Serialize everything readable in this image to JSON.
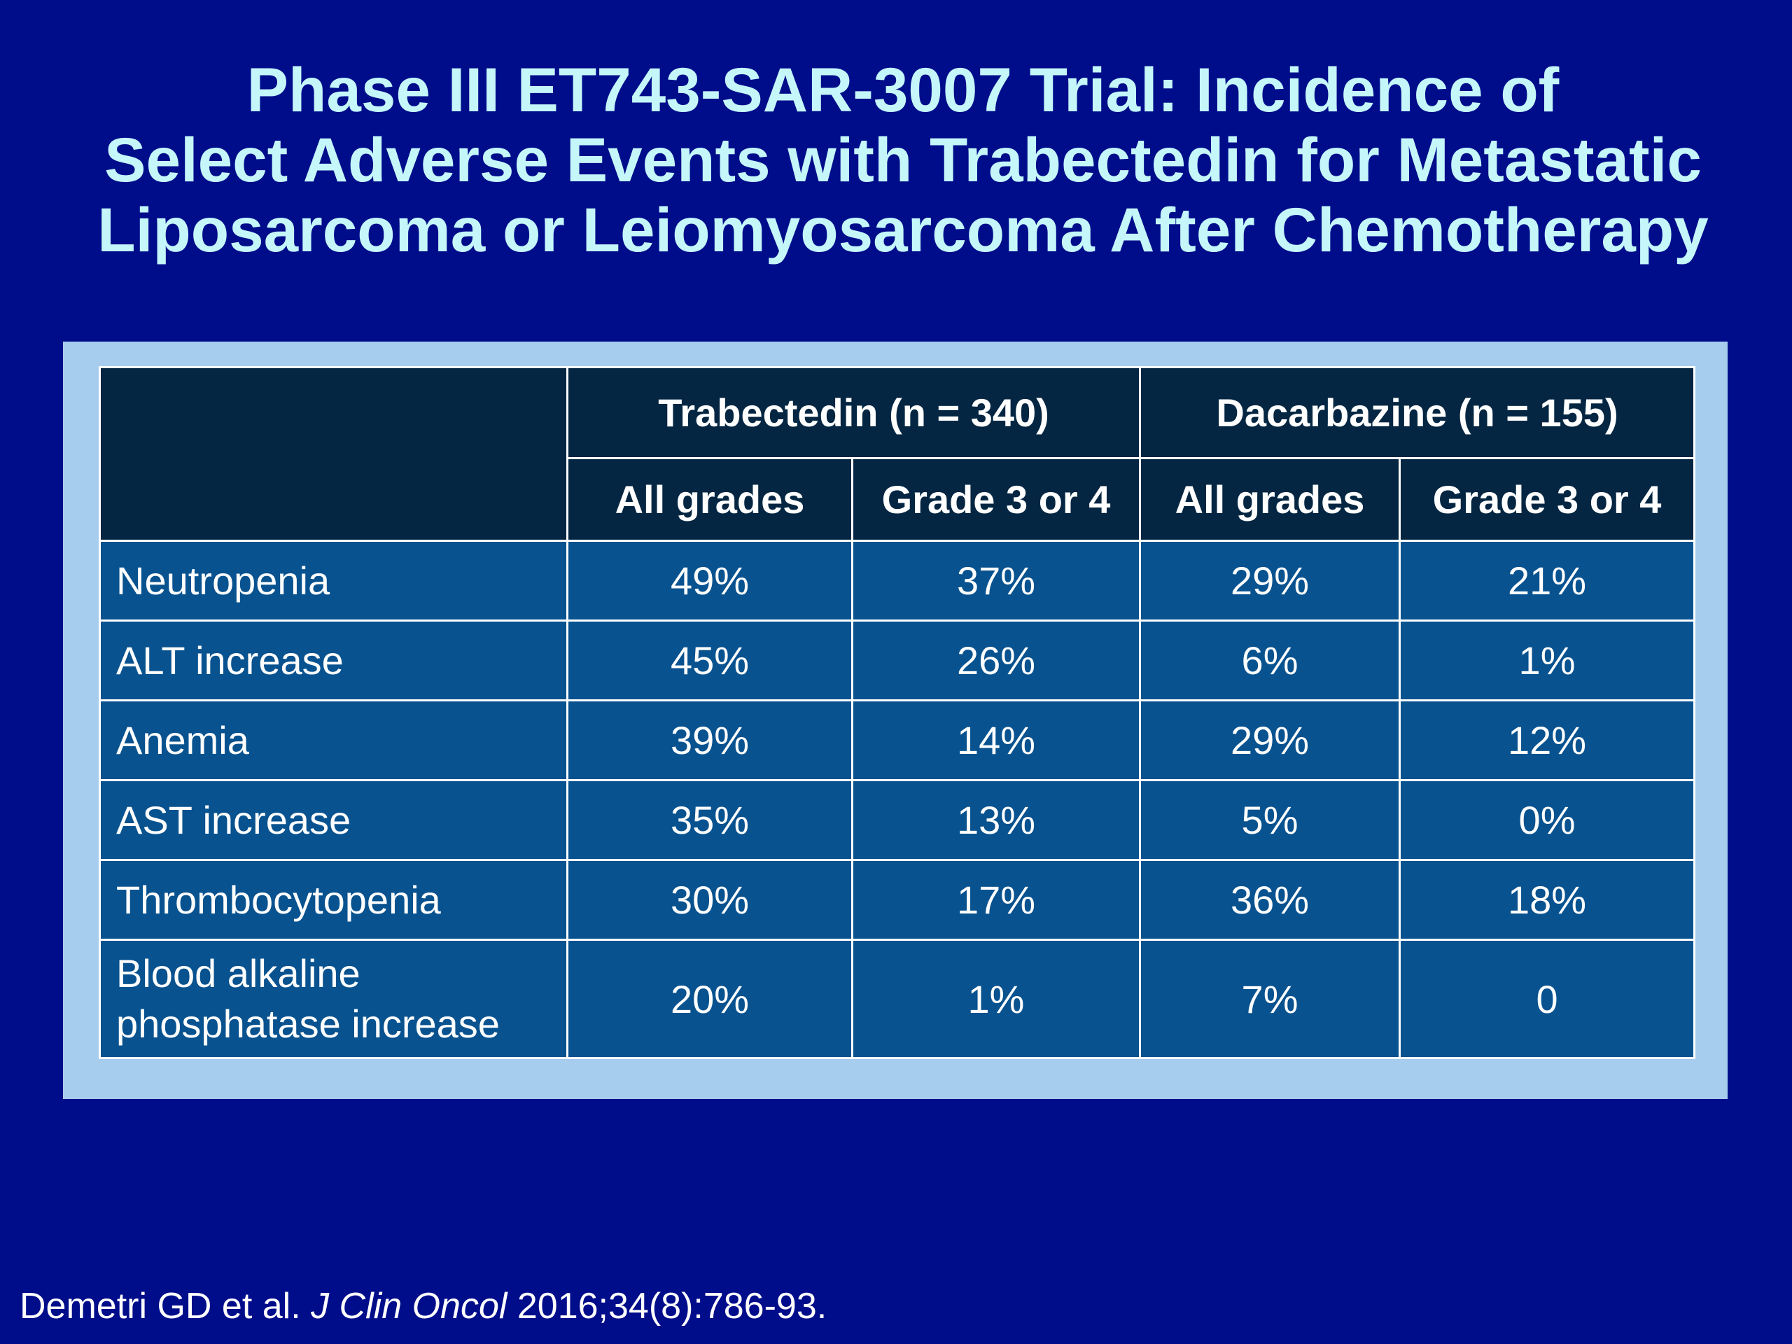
{
  "title": {
    "line1": "Phase III ET743-SAR-3007 Trial: Incidence of",
    "line2": "Select Adverse Events with Trabectedin for Metastatic",
    "line3": "Liposarcoma or Leiomyosarcoma After Chemotherapy"
  },
  "table": {
    "groups": [
      "Trabectedin (n = 340)",
      "Dacarbazine (n = 155)"
    ],
    "subheaders": [
      "All grades",
      "Grade 3 or 4",
      "All grades",
      "Grade 3 or 4"
    ],
    "rows": [
      {
        "label": "Neutropenia",
        "values": [
          "49%",
          "37%",
          "29%",
          "21%"
        ]
      },
      {
        "label": "ALT increase",
        "values": [
          "45%",
          "26%",
          "6%",
          "1%"
        ]
      },
      {
        "label": "Anemia",
        "values": [
          "39%",
          "14%",
          "29%",
          "12%"
        ]
      },
      {
        "label": "AST increase",
        "values": [
          "35%",
          "13%",
          "5%",
          "0%"
        ]
      },
      {
        "label": "Thrombocytopenia",
        "values": [
          "30%",
          "17%",
          "36%",
          "18%"
        ]
      },
      {
        "label_line1": "Blood alkaline",
        "label_line2": "phosphatase increase",
        "values": [
          "20%",
          "1%",
          "7%",
          "0"
        ]
      }
    ]
  },
  "citation": {
    "authors": "Demetri GD et al.",
    "journal": "J Clin Oncol",
    "ref": "2016;34(8):786-93."
  },
  "colors": {
    "background": "#000d8a",
    "title": "#c4f6fa",
    "frame": "#a6cdee",
    "header_cell": "#042642",
    "body_cell": "#08528f"
  }
}
